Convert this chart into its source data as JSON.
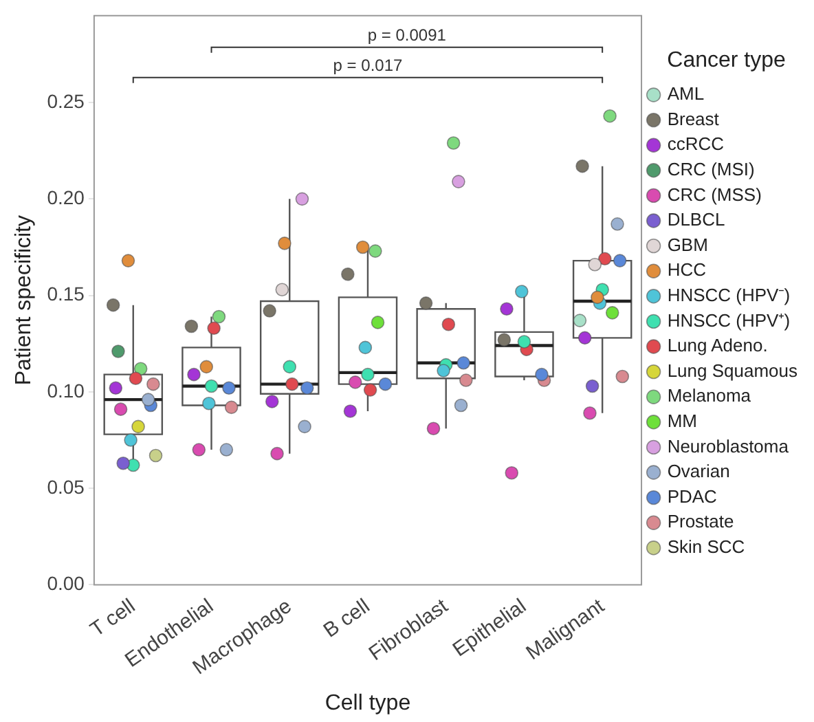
{
  "chart_data": {
    "type": "box",
    "xlabel": "Cell type",
    "ylabel": "Patient specificity",
    "legend_title": "Cancer type",
    "legend": "right",
    "grid": false,
    "marker": "circle",
    "categories": [
      "T cell",
      "Endothelial",
      "Macrophage",
      "B cell",
      "Fibroblast",
      "Epithelial",
      "Malignant"
    ],
    "ylim": [
      0,
      0.295
    ],
    "yticks": [
      {
        "value": 0,
        "label": "0.00"
      },
      {
        "value": 0.05,
        "label": "0.05"
      },
      {
        "value": 0.1,
        "label": "0.10"
      },
      {
        "value": 0.15,
        "label": "0.15"
      },
      {
        "value": 0.2,
        "label": "0.20"
      },
      {
        "value": 0.25,
        "label": "0.25"
      }
    ],
    "annotations": [
      "p = 0.0091",
      "p = 0.017"
    ],
    "boxes": [
      {
        "low": 0.062,
        "q1": 0.078,
        "median": 0.096,
        "q3": 0.109,
        "high": 0.145
      },
      {
        "low": 0.07,
        "q1": 0.093,
        "median": 0.103,
        "q3": 0.123,
        "high": 0.139
      },
      {
        "low": 0.068,
        "q1": 0.099,
        "median": 0.104,
        "q3": 0.147,
        "high": 0.2
      },
      {
        "low": 0.09,
        "q1": 0.104,
        "median": 0.11,
        "q3": 0.149,
        "high": 0.175
      },
      {
        "low": 0.081,
        "q1": 0.107,
        "median": 0.115,
        "q3": 0.143,
        "high": 0.146
      },
      {
        "low": 0.106,
        "q1": 0.108,
        "median": 0.124,
        "q3": 0.131,
        "high": 0.152
      },
      {
        "low": 0.089,
        "q1": 0.128,
        "median": 0.147,
        "q3": 0.168,
        "high": 0.217
      }
    ],
    "series": [
      {
        "type": "scatter",
        "name": "AML",
        "color": "#a8e0c8",
        "x": [
          "Malignant"
        ],
        "values": [
          0.137
        ]
      },
      {
        "type": "scatter",
        "name": "Breast",
        "color": "#7a7568",
        "x": [
          "T cell",
          "Endothelial",
          "Macrophage",
          "B cell",
          "Fibroblast",
          "Epithelial",
          "Malignant"
        ],
        "values": [
          0.145,
          0.134,
          0.142,
          0.161,
          0.146,
          0.127,
          0.217
        ]
      },
      {
        "type": "scatter",
        "name": "ccRCC",
        "color": "#a435d6",
        "x": [
          "T cell",
          "Endothelial",
          "Macrophage",
          "B cell",
          "Epithelial",
          "Malignant"
        ],
        "values": [
          0.102,
          0.109,
          0.095,
          0.09,
          0.143,
          0.128
        ]
      },
      {
        "type": "scatter",
        "name": "CRC (MSI)",
        "color": "#4f9a6c",
        "x": [
          "T cell"
        ],
        "values": [
          0.121
        ]
      },
      {
        "type": "scatter",
        "name": "CRC (MSS)",
        "color": "#d94bb0",
        "x": [
          "T cell",
          "Endothelial",
          "Macrophage",
          "B cell",
          "Fibroblast",
          "Epithelial",
          "Malignant"
        ],
        "values": [
          0.091,
          0.07,
          0.068,
          0.105,
          0.081,
          0.058,
          0.089
        ]
      },
      {
        "type": "scatter",
        "name": "DLBCL",
        "color": "#7a5fd0",
        "x": [
          "T cell",
          "Malignant"
        ],
        "values": [
          0.063,
          0.103
        ]
      },
      {
        "type": "scatter",
        "name": "GBM",
        "color": "#e0d6d6",
        "x": [
          "Macrophage",
          "Malignant"
        ],
        "values": [
          0.153,
          0.166
        ]
      },
      {
        "type": "scatter",
        "name": "HCC",
        "color": "#e08d3c",
        "x": [
          "T cell",
          "Endothelial",
          "Macrophage",
          "B cell",
          "Malignant"
        ],
        "values": [
          0.168,
          0.113,
          0.177,
          0.175,
          0.149
        ]
      },
      {
        "type": "scatter",
        "name": "HNSCC (HPV⁻)",
        "color": "#4fc4d8",
        "x": [
          "T cell",
          "Endothelial",
          "B cell",
          "Fibroblast",
          "Epithelial",
          "Malignant"
        ],
        "values": [
          0.075,
          0.094,
          0.123,
          0.111,
          0.152,
          0.146
        ]
      },
      {
        "type": "scatter",
        "name": "HNSCC (HPV⁺)",
        "color": "#3fe0b0",
        "x": [
          "T cell",
          "Endothelial",
          "Macrophage",
          "B cell",
          "Fibroblast",
          "Epithelial",
          "Malignant"
        ],
        "values": [
          0.062,
          0.103,
          0.113,
          0.109,
          0.114,
          0.126,
          0.153
        ]
      },
      {
        "type": "scatter",
        "name": "Lung Adeno.",
        "color": "#e04a50",
        "x": [
          "T cell",
          "Endothelial",
          "Macrophage",
          "B cell",
          "Fibroblast",
          "Epithelial",
          "Malignant"
        ],
        "values": [
          0.107,
          0.133,
          0.104,
          0.101,
          0.135,
          0.122,
          0.169
        ]
      },
      {
        "type": "scatter",
        "name": "Lung Squamous",
        "color": "#d6d63a",
        "x": [
          "T cell"
        ],
        "values": [
          0.082
        ]
      },
      {
        "type": "scatter",
        "name": "Melanoma",
        "color": "#7ed97e",
        "x": [
          "T cell",
          "Endothelial",
          "B cell",
          "Fibroblast",
          "Malignant"
        ],
        "values": [
          0.112,
          0.139,
          0.173,
          0.229,
          0.243
        ]
      },
      {
        "type": "scatter",
        "name": "MM",
        "color": "#6ee03a",
        "x": [
          "B cell",
          "Malignant"
        ],
        "values": [
          0.136,
          0.141
        ]
      },
      {
        "type": "scatter",
        "name": "Neuroblastoma",
        "color": "#d8a0e0",
        "x": [
          "Macrophage",
          "Fibroblast"
        ],
        "values": [
          0.2,
          0.209
        ]
      },
      {
        "type": "scatter",
        "name": "Ovarian",
        "color": "#9ab0d0",
        "x": [
          "T cell",
          "Endothelial",
          "Macrophage",
          "Fibroblast",
          "Malignant"
        ],
        "values": [
          0.096,
          0.07,
          0.082,
          0.093,
          0.187
        ]
      },
      {
        "type": "scatter",
        "name": "PDAC",
        "color": "#5a88d8",
        "x": [
          "T cell",
          "Endothelial",
          "Macrophage",
          "B cell",
          "Fibroblast",
          "Epithelial",
          "Malignant"
        ],
        "values": [
          0.093,
          0.102,
          0.102,
          0.104,
          0.115,
          0.109,
          0.168
        ]
      },
      {
        "type": "scatter",
        "name": "Prostate",
        "color": "#d88a90",
        "x": [
          "T cell",
          "Endothelial",
          "Fibroblast",
          "Epithelial",
          "Malignant"
        ],
        "values": [
          0.104,
          0.092,
          0.106,
          0.106,
          0.108
        ]
      },
      {
        "type": "scatter",
        "name": "Skin SCC",
        "color": "#c8d08a",
        "x": [
          "T cell"
        ],
        "values": [
          0.067
        ]
      }
    ]
  }
}
